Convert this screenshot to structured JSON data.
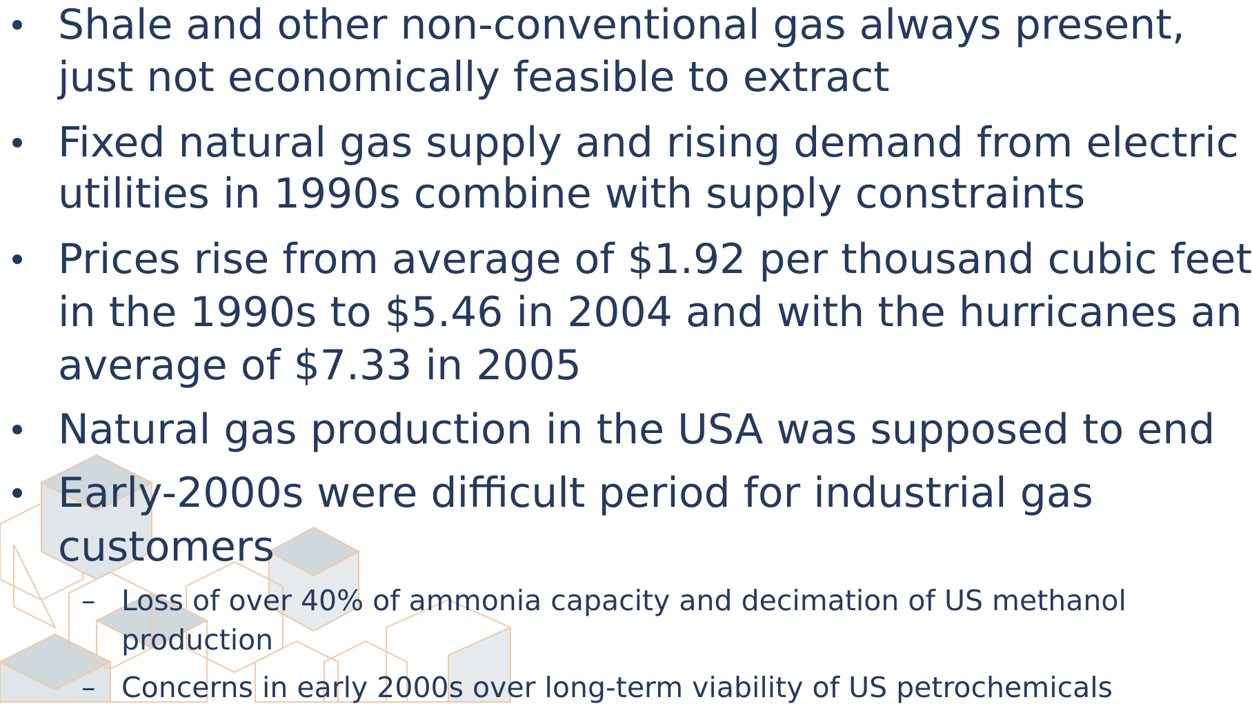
{
  "bullets": [
    {
      "lines": [
        "Shale and other non-conventional gas always present,",
        "just not economically feasible to extract"
      ]
    },
    {
      "lines": [
        "Fixed natural gas supply and rising demand from electric",
        "utilities in 1990s combine with supply constraints"
      ]
    },
    {
      "lines": [
        "Prices rise from average of $1.92 per thousand cubic feet",
        "in the 1990s to $5.46 in 2004 and with the hurricanes an",
        "average of $7.33 in 2005"
      ]
    },
    {
      "lines": [
        "Natural gas production in the USA was supposed to end"
      ]
    },
    {
      "lines": [
        "Early-2000s were difficult period for industrial gas",
        "customers"
      ],
      "subbullets": [
        {
          "lines": [
            "Loss of over 40% of ammonia capacity and decimation of US methanol",
            "production"
          ]
        },
        {
          "lines": [
            "Concerns in early 2000s over long-term viability of US petrochemicals"
          ]
        }
      ]
    }
  ]
}
